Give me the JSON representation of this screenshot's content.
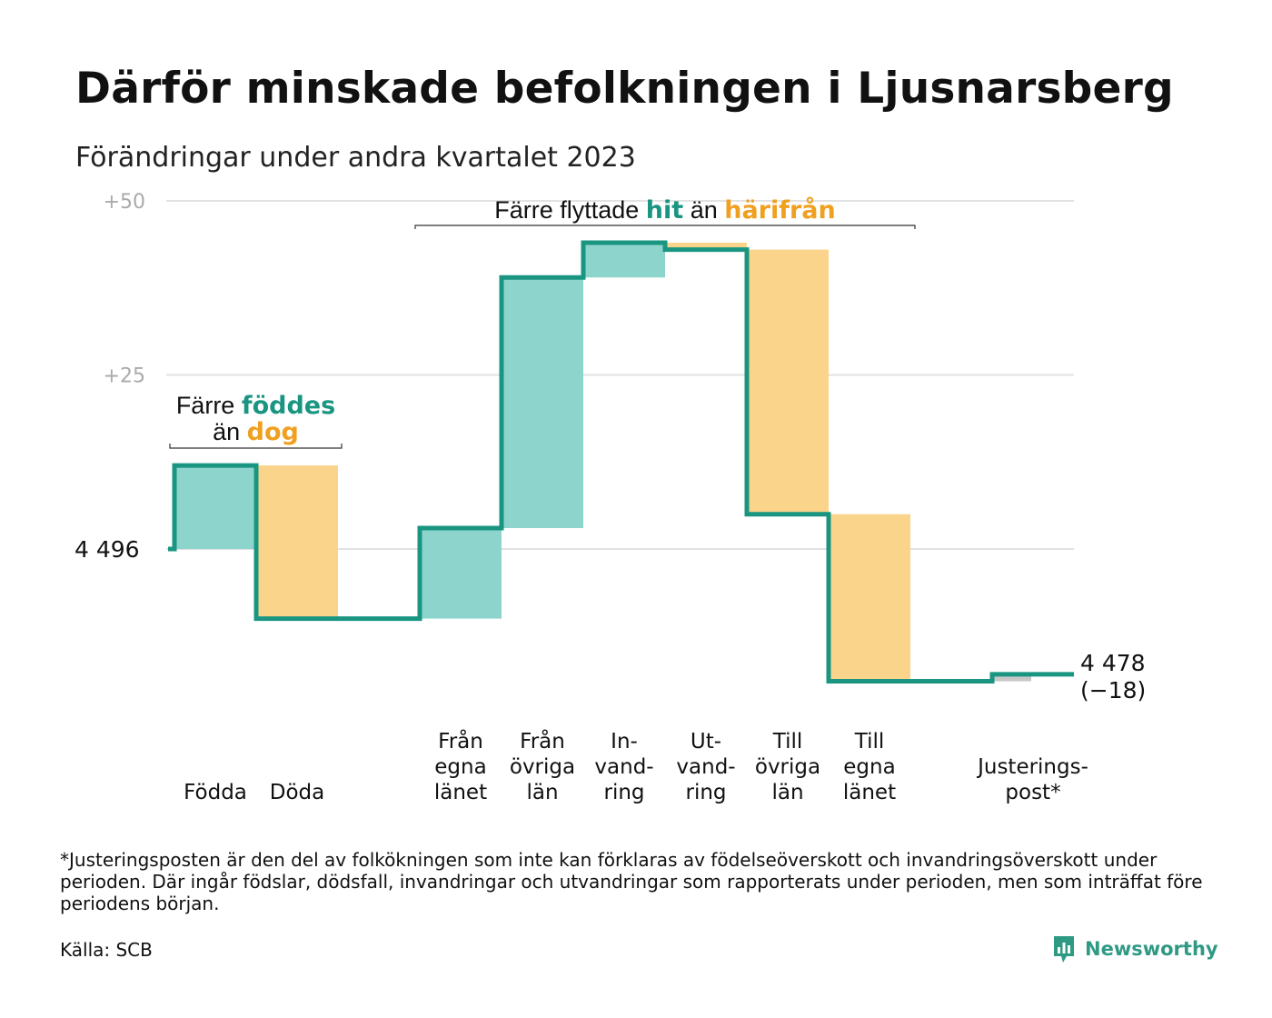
{
  "title": "Därför minskade befolkningen i Ljusnarsberg",
  "subtitle": "Förändringar under andra kvartalet 2023",
  "footnote": "*Justeringsposten är den del av folkökningen som inte kan förklaras av födelseöverskott och invandringsöverskott under perioden. Där ingår födslar, dödsfall, invandringar och utvandringar som rapporterats under perioden, men som inträffat före periodens början.",
  "source": "Källa: SCB",
  "brand": {
    "name": "Newsworthy",
    "icon": "newsworthy-logo-icon"
  },
  "colors": {
    "increase": "#8dd5cc",
    "decrease": "#fad48b",
    "adjustment": "#c8c8c8",
    "line": "#1a9582",
    "accent_teal": "#1a9582",
    "accent_orange": "#f0a020",
    "grid": "#e2e2e2"
  },
  "annotations": {
    "natural": {
      "line1_prefix": "Färre ",
      "line1_highlight": "föddes",
      "line2_prefix": "än ",
      "line2_highlight": "dog"
    },
    "migration": {
      "prefix": "Färre flyttade ",
      "highlight1": "hit",
      "middle": " än ",
      "highlight2": "härifrån"
    }
  },
  "chart_data": {
    "type": "waterfall",
    "start_label": "4  496",
    "start_value": 4496,
    "end_label": "4 478",
    "end_change_label": "(−18)",
    "end_value": 4478,
    "y_ticks": [
      {
        "label": "+50",
        "offset": 50
      },
      {
        "label": "+25",
        "offset": 25
      }
    ],
    "ylim": [
      -20,
      50
    ],
    "grid": true,
    "categories": [
      {
        "label": [
          "Födda"
        ],
        "change": 12
      },
      {
        "label": [
          "Döda"
        ],
        "change": -22
      },
      {
        "label": [],
        "change": null
      },
      {
        "label": [
          "Från",
          "egna",
          "länet"
        ],
        "change": 13
      },
      {
        "label": [
          "Från",
          "övriga",
          "län"
        ],
        "change": 36
      },
      {
        "label": [
          "In-",
          "vand-",
          "ring"
        ],
        "change": 5
      },
      {
        "label": [
          "Ut-",
          "vand-",
          "ring"
        ],
        "change": -1
      },
      {
        "label": [
          "Till",
          "övriga",
          "län"
        ],
        "change": -38
      },
      {
        "label": [
          "Till",
          "egna",
          "länet"
        ],
        "change": -24
      },
      {
        "label": [],
        "change": null
      },
      {
        "label": [
          "Justerings-",
          "post*"
        ],
        "change": 1
      }
    ]
  }
}
